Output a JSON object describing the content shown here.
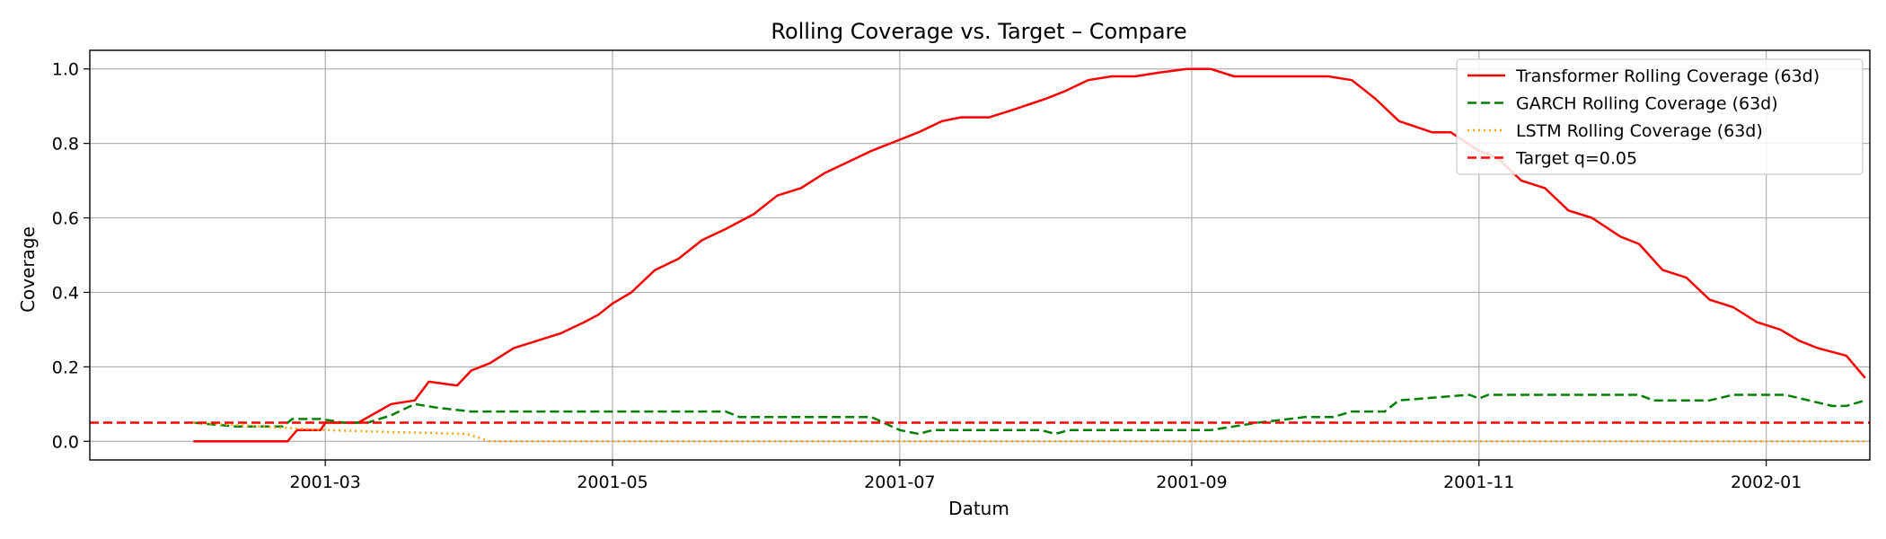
{
  "chart_data": {
    "type": "line",
    "title": "Rolling Coverage vs. Target – Compare",
    "xlabel": "Datum",
    "ylabel": "Coverage",
    "x_axis_type": "date",
    "xlim": [
      "2001-01-10",
      "2002-01-23"
    ],
    "ylim": [
      -0.05,
      1.05
    ],
    "grid": true,
    "legend_position": "top-right",
    "x_ticks": [
      "2001-03-01",
      "2001-05-01",
      "2001-07-01",
      "2001-09-01",
      "2001-11-01",
      "2002-01-01"
    ],
    "x_tick_labels": [
      "2001-03",
      "2001-05",
      "2001-07",
      "2001-09",
      "2001-11",
      "2002-01"
    ],
    "y_ticks": [
      0.0,
      0.2,
      0.4,
      0.6,
      0.8,
      1.0
    ],
    "y_tick_labels": [
      "0.0",
      "0.2",
      "0.4",
      "0.6",
      "0.8",
      "1.0"
    ],
    "series": [
      {
        "name": "Transformer Rolling Coverage (63d)",
        "color": "#ff0000",
        "style": "solid",
        "points": [
          [
            "2001-02-01",
            0.0
          ],
          [
            "2001-02-21",
            0.0
          ],
          [
            "2001-02-23",
            0.03
          ],
          [
            "2001-02-28",
            0.03
          ],
          [
            "2001-03-01",
            0.05
          ],
          [
            "2001-03-08",
            0.05
          ],
          [
            "2001-03-15",
            0.1
          ],
          [
            "2001-03-20",
            0.11
          ],
          [
            "2001-03-23",
            0.16
          ],
          [
            "2001-03-29",
            0.15
          ],
          [
            "2001-04-01",
            0.19
          ],
          [
            "2001-04-05",
            0.21
          ],
          [
            "2001-04-10",
            0.25
          ],
          [
            "2001-04-15",
            0.27
          ],
          [
            "2001-04-20",
            0.29
          ],
          [
            "2001-04-25",
            0.32
          ],
          [
            "2001-04-28",
            0.34
          ],
          [
            "2001-05-01",
            0.37
          ],
          [
            "2001-05-05",
            0.4
          ],
          [
            "2001-05-10",
            0.46
          ],
          [
            "2001-05-15",
            0.49
          ],
          [
            "2001-05-20",
            0.54
          ],
          [
            "2001-05-25",
            0.57
          ],
          [
            "2001-05-31",
            0.61
          ],
          [
            "2001-06-05",
            0.66
          ],
          [
            "2001-06-10",
            0.68
          ],
          [
            "2001-06-15",
            0.72
          ],
          [
            "2001-06-20",
            0.75
          ],
          [
            "2001-06-25",
            0.78
          ],
          [
            "2001-07-01",
            0.81
          ],
          [
            "2001-07-05",
            0.83
          ],
          [
            "2001-07-10",
            0.86
          ],
          [
            "2001-07-14",
            0.87
          ],
          [
            "2001-07-20",
            0.87
          ],
          [
            "2001-07-25",
            0.89
          ],
          [
            "2001-08-01",
            0.92
          ],
          [
            "2001-08-05",
            0.94
          ],
          [
            "2001-08-10",
            0.97
          ],
          [
            "2001-08-15",
            0.98
          ],
          [
            "2001-08-20",
            0.98
          ],
          [
            "2001-08-25",
            0.99
          ],
          [
            "2001-08-31",
            1.0
          ],
          [
            "2001-09-05",
            1.0
          ],
          [
            "2001-09-10",
            0.98
          ],
          [
            "2001-09-30",
            0.98
          ],
          [
            "2001-10-05",
            0.97
          ],
          [
            "2001-10-10",
            0.92
          ],
          [
            "2001-10-15",
            0.86
          ],
          [
            "2001-10-22",
            0.83
          ],
          [
            "2001-10-26",
            0.83
          ],
          [
            "2001-11-01",
            0.78
          ],
          [
            "2001-11-05",
            0.76
          ],
          [
            "2001-11-10",
            0.7
          ],
          [
            "2001-11-15",
            0.68
          ],
          [
            "2001-11-20",
            0.62
          ],
          [
            "2001-11-25",
            0.6
          ],
          [
            "2001-12-01",
            0.55
          ],
          [
            "2001-12-05",
            0.53
          ],
          [
            "2001-12-10",
            0.46
          ],
          [
            "2001-12-15",
            0.44
          ],
          [
            "2001-12-20",
            0.38
          ],
          [
            "2001-12-25",
            0.36
          ],
          [
            "2001-12-30",
            0.32
          ],
          [
            "2002-01-04",
            0.3
          ],
          [
            "2002-01-08",
            0.27
          ],
          [
            "2002-01-12",
            0.25
          ],
          [
            "2002-01-18",
            0.23
          ],
          [
            "2002-01-22",
            0.17
          ]
        ]
      },
      {
        "name": "GARCH Rolling Coverage (63d)",
        "color": "#008000",
        "style": "dashed",
        "points": [
          [
            "2001-02-01",
            0.05
          ],
          [
            "2001-02-10",
            0.04
          ],
          [
            "2001-02-20",
            0.04
          ],
          [
            "2001-02-22",
            0.06
          ],
          [
            "2001-02-28",
            0.06
          ],
          [
            "2001-03-05",
            0.05
          ],
          [
            "2001-03-10",
            0.05
          ],
          [
            "2001-03-15",
            0.07
          ],
          [
            "2001-03-20",
            0.1
          ],
          [
            "2001-03-25",
            0.09
          ],
          [
            "2001-04-01",
            0.08
          ],
          [
            "2001-05-01",
            0.08
          ],
          [
            "2001-05-25",
            0.08
          ],
          [
            "2001-05-28",
            0.065
          ],
          [
            "2001-06-25",
            0.065
          ],
          [
            "2001-07-01",
            0.03
          ],
          [
            "2001-07-05",
            0.02
          ],
          [
            "2001-07-08",
            0.03
          ],
          [
            "2001-07-31",
            0.03
          ],
          [
            "2001-08-03",
            0.02
          ],
          [
            "2001-08-06",
            0.03
          ],
          [
            "2001-09-05",
            0.03
          ],
          [
            "2001-09-15",
            0.05
          ],
          [
            "2001-09-25",
            0.065
          ],
          [
            "2001-10-01",
            0.065
          ],
          [
            "2001-10-05",
            0.08
          ],
          [
            "2001-10-12",
            0.08
          ],
          [
            "2001-10-15",
            0.11
          ],
          [
            "2001-10-25",
            0.12
          ],
          [
            "2001-10-30",
            0.125
          ],
          [
            "2001-11-01",
            0.115
          ],
          [
            "2001-11-03",
            0.125
          ],
          [
            "2001-12-05",
            0.125
          ],
          [
            "2001-12-08",
            0.11
          ],
          [
            "2001-12-20",
            0.11
          ],
          [
            "2001-12-25",
            0.125
          ],
          [
            "2002-01-05",
            0.125
          ],
          [
            "2002-01-10",
            0.11
          ],
          [
            "2002-01-15",
            0.095
          ],
          [
            "2002-01-18",
            0.095
          ],
          [
            "2002-01-22",
            0.11
          ]
        ]
      },
      {
        "name": "LSTM Rolling Coverage (63d)",
        "color": "#ffa500",
        "style": "dotted",
        "points": [
          [
            "2001-02-01",
            0.05
          ],
          [
            "2001-02-15",
            0.04
          ],
          [
            "2001-03-01",
            0.03
          ],
          [
            "2001-03-15",
            0.025
          ],
          [
            "2001-03-31",
            0.02
          ],
          [
            "2001-04-05",
            0.0
          ],
          [
            "2002-01-22",
            0.0
          ]
        ]
      },
      {
        "name": "Target q=0.05",
        "color": "#ff0000",
        "style": "dashed",
        "value": 0.05
      }
    ]
  }
}
